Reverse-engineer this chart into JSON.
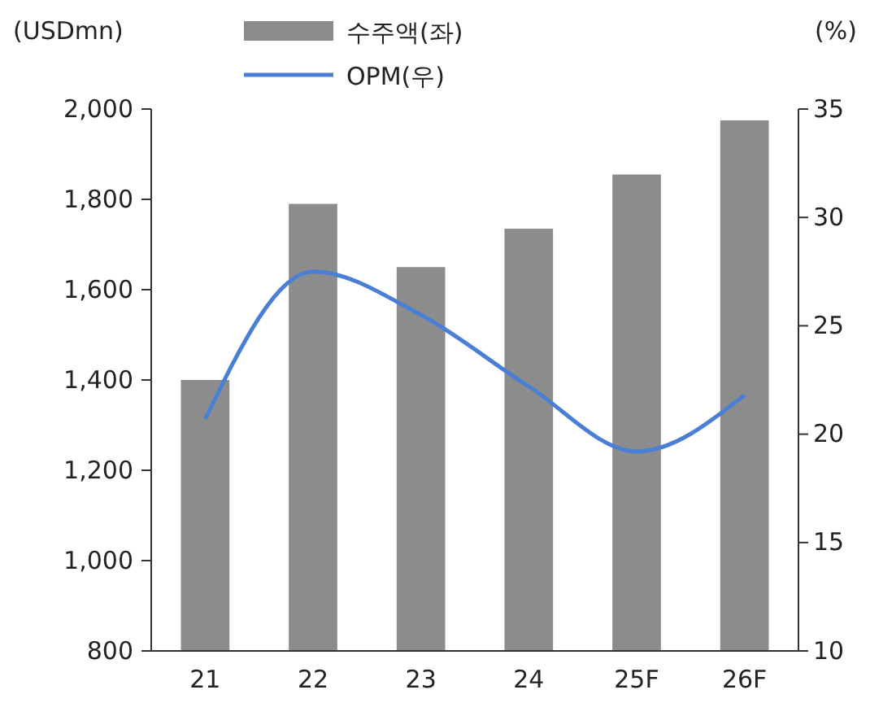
{
  "chart_data": {
    "type": "bar",
    "ylabel": "(USDmn)",
    "y2label": "(%)",
    "categories": [
      "21",
      "22",
      "23",
      "24",
      "25F",
      "26F"
    ],
    "series": [
      {
        "name": "수주액(좌)",
        "color": "#8c8c8c",
        "values": [
          1400,
          1790,
          1650,
          1735,
          1855,
          1975
        ]
      },
      {
        "name": "OPM(우)",
        "type": "line",
        "axis": "y2",
        "color": "#4a7fd4",
        "values": [
          20.7,
          27.5,
          25.5,
          22.2,
          19.2,
          21.8
        ]
      }
    ],
    "ylim": [
      800,
      2000
    ],
    "yticks": [
      {
        "value": 800,
        "label": "800"
      },
      {
        "value": 1000,
        "label": "1,000"
      },
      {
        "value": 1200,
        "label": "1,200"
      },
      {
        "value": 1400,
        "label": "1,400"
      },
      {
        "value": 1600,
        "label": "1,600"
      },
      {
        "value": 1800,
        "label": "1,800"
      },
      {
        "value": 2000,
        "label": "2,000"
      }
    ],
    "y2lim": [
      10,
      35
    ],
    "y2ticks": [
      10,
      15,
      20,
      25,
      30,
      35
    ],
    "legend": "top",
    "grid": false,
    "marker": "none",
    "line_style": "solid"
  }
}
